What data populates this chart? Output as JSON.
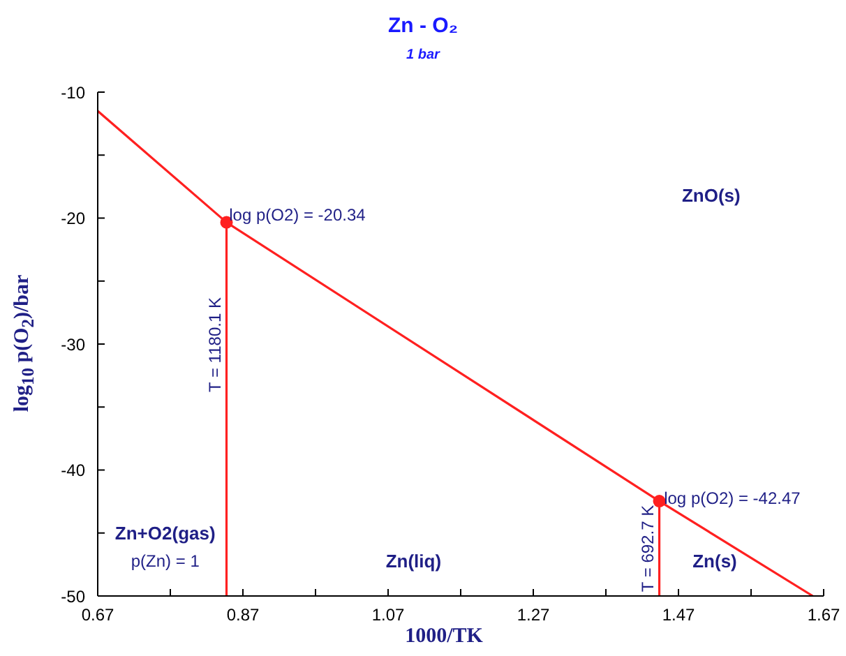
{
  "chart_data": {
    "type": "line",
    "title": "Zn - O₂",
    "subtitle": "1 bar",
    "xlabel": "1000/TK",
    "ylabel": "log$_{10}$ p(O$_{2}$)/bar",
    "xlim": [
      0.67,
      1.67
    ],
    "ylim": [
      -50,
      -10
    ],
    "xticks": [
      0.67,
      {
        "value": 0.77,
        "label": null
      },
      0.87,
      {
        "value": 0.97,
        "label": null
      },
      1.07,
      {
        "value": 1.17,
        "label": null
      },
      1.27,
      {
        "value": 1.37,
        "label": null
      },
      1.47,
      {
        "value": 1.57,
        "label": null
      },
      1.67
    ],
    "yticks": [
      -50,
      {
        "value": -45,
        "label": null
      },
      -40,
      {
        "value": -35,
        "label": null
      },
      -30,
      {
        "value": -25,
        "label": null
      },
      -20,
      {
        "value": -15,
        "label": null
      },
      -10
    ],
    "grid": false,
    "marker": "none",
    "line_style": "solid",
    "series": [
      {
        "color": "#ff2020",
        "x": [
          0.67,
          0.8474,
          1.4436,
          1.655
        ],
        "values": [
          -11.5,
          -20.34,
          -42.47,
          -50
        ]
      },
      {
        "color": "#ff2020",
        "x": [
          0.8474,
          0.8474
        ],
        "values": [
          -50,
          -20.34
        ]
      },
      {
        "color": "#ff2020",
        "x": [
          1.4436,
          1.4436
        ],
        "values": [
          -50,
          -42.47
        ]
      },
      {
        "type": "scatter",
        "marker": "circle",
        "color": "#ff2020",
        "x": [
          0.8474,
          1.4436
        ],
        "values": [
          -20.34,
          -42.47
        ]
      }
    ],
    "annotations": [
      "log p(O2) = -20.34",
      "T = 1180.1 K",
      "log p(O2) = -42.47",
      "T = 692.7 K",
      "ZnO(s)",
      "Zn+O2(gas)",
      "p(Zn) = 1",
      "Zn(liq)",
      "Zn(s)"
    ]
  }
}
